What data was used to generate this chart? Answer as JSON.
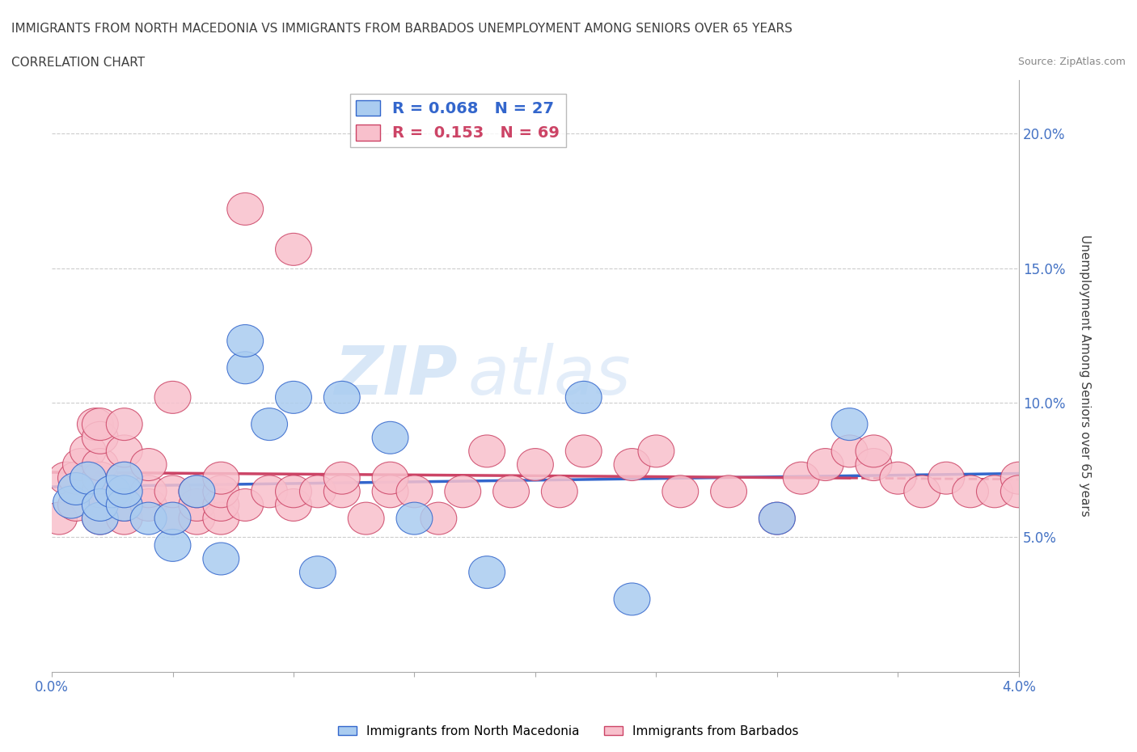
{
  "title_line1": "IMMIGRANTS FROM NORTH MACEDONIA VS IMMIGRANTS FROM BARBADOS UNEMPLOYMENT AMONG SENIORS OVER 65 YEARS",
  "title_line2": "CORRELATION CHART",
  "source": "Source: ZipAtlas.com",
  "ylabel": "Unemployment Among Seniors over 65 years",
  "xlim": [
    0.0,
    0.04
  ],
  "ylim": [
    0.0,
    0.22
  ],
  "yticks": [
    0.05,
    0.1,
    0.15,
    0.2
  ],
  "ytick_labels": [
    "5.0%",
    "10.0%",
    "15.0%",
    "20.0%"
  ],
  "xticks": [
    0.0,
    0.005,
    0.01,
    0.015,
    0.02,
    0.025,
    0.03,
    0.035,
    0.04
  ],
  "xtick_labels": [
    "0.0%",
    "",
    "",
    "",
    "",
    "",
    "",
    "",
    "4.0%"
  ],
  "legend_label1": "Immigrants from North Macedonia",
  "legend_label2": "Immigrants from Barbados",
  "R1": 0.068,
  "N1": 27,
  "R2": 0.153,
  "N2": 69,
  "color1": "#aaccf0",
  "color2": "#f8c0cc",
  "trendline_color1": "#3366cc",
  "trendline_color2": "#cc4466",
  "watermark_color": "#ddeeff",
  "background_color": "#ffffff",
  "grid_color": "#cccccc",
  "title_color": "#404040",
  "blue_data_x": [
    0.0008,
    0.001,
    0.0015,
    0.002,
    0.002,
    0.0025,
    0.003,
    0.003,
    0.003,
    0.004,
    0.005,
    0.005,
    0.006,
    0.007,
    0.008,
    0.008,
    0.009,
    0.01,
    0.011,
    0.012,
    0.014,
    0.015,
    0.018,
    0.022,
    0.024,
    0.03,
    0.033
  ],
  "blue_data_y": [
    0.063,
    0.068,
    0.072,
    0.057,
    0.062,
    0.067,
    0.062,
    0.067,
    0.072,
    0.057,
    0.047,
    0.057,
    0.067,
    0.042,
    0.113,
    0.123,
    0.092,
    0.102,
    0.037,
    0.102,
    0.087,
    0.057,
    0.037,
    0.102,
    0.027,
    0.057,
    0.092
  ],
  "pink_data_x": [
    0.0003,
    0.0006,
    0.001,
    0.001,
    0.0012,
    0.0015,
    0.0018,
    0.002,
    0.002,
    0.002,
    0.002,
    0.002,
    0.002,
    0.003,
    0.003,
    0.003,
    0.003,
    0.003,
    0.003,
    0.004,
    0.004,
    0.004,
    0.005,
    0.005,
    0.005,
    0.006,
    0.006,
    0.006,
    0.007,
    0.007,
    0.007,
    0.007,
    0.008,
    0.008,
    0.009,
    0.01,
    0.01,
    0.01,
    0.011,
    0.012,
    0.012,
    0.013,
    0.014,
    0.014,
    0.015,
    0.016,
    0.017,
    0.018,
    0.019,
    0.02,
    0.021,
    0.022,
    0.024,
    0.025,
    0.026,
    0.028,
    0.03,
    0.031,
    0.032,
    0.033,
    0.034,
    0.034,
    0.035,
    0.036,
    0.037,
    0.038,
    0.039,
    0.04,
    0.04
  ],
  "pink_data_y": [
    0.057,
    0.072,
    0.062,
    0.072,
    0.077,
    0.082,
    0.092,
    0.057,
    0.067,
    0.072,
    0.077,
    0.087,
    0.092,
    0.057,
    0.062,
    0.067,
    0.072,
    0.082,
    0.092,
    0.062,
    0.067,
    0.077,
    0.057,
    0.067,
    0.102,
    0.057,
    0.062,
    0.067,
    0.057,
    0.062,
    0.067,
    0.072,
    0.062,
    0.172,
    0.067,
    0.062,
    0.067,
    0.157,
    0.067,
    0.067,
    0.072,
    0.057,
    0.067,
    0.072,
    0.067,
    0.057,
    0.067,
    0.082,
    0.067,
    0.077,
    0.067,
    0.082,
    0.077,
    0.082,
    0.067,
    0.067,
    0.057,
    0.072,
    0.077,
    0.082,
    0.077,
    0.082,
    0.072,
    0.067,
    0.072,
    0.067,
    0.067,
    0.072,
    0.067
  ]
}
